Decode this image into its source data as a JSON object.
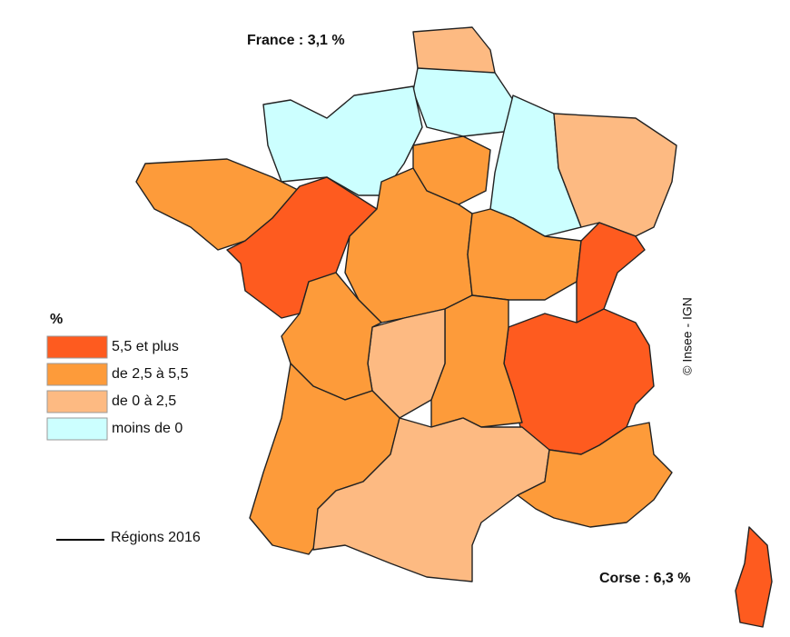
{
  "header": {
    "title": "France : 3,1 %"
  },
  "legend": {
    "title": "%",
    "items": [
      {
        "label": "5,5 et plus",
        "color": "#fe5b1f"
      },
      {
        "label": "de 2,5 à 5,5",
        "color": "#fd9b3a"
      },
      {
        "label": "de 0 à 2,5",
        "color": "#fdba82"
      },
      {
        "label": "moins de 0",
        "color": "#ccffff"
      }
    ]
  },
  "annotations": {
    "corse": "Corse : 6,3 %",
    "boundary": "Régions 2016",
    "credit": "© Insee - IGN"
  }
}
